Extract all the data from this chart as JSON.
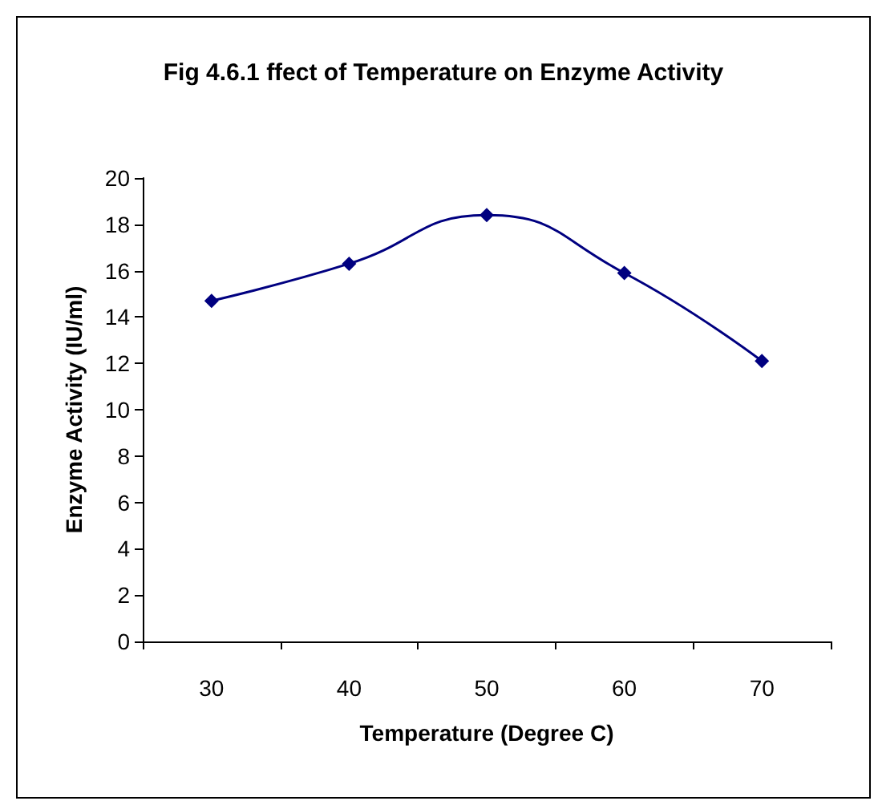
{
  "chart_data": {
    "type": "line",
    "title": "Fig 4.6.1 ffect of Temperature on Enzyme Activity",
    "xlabel": "Temperature (Degree C)",
    "ylabel": "Enzyme Activity (IU/ml)",
    "categories": [
      "30",
      "40",
      "50",
      "60",
      "70"
    ],
    "series": [
      {
        "color": "#000080",
        "values": [
          14.7,
          16.3,
          18.4,
          15.9,
          12.1
        ]
      }
    ],
    "ylim": [
      0,
      20
    ],
    "yticks": [
      0,
      2,
      4,
      6,
      8,
      10,
      12,
      14,
      16,
      18,
      20
    ],
    "grid": false,
    "marker": "diamond",
    "line_style": "solid"
  }
}
